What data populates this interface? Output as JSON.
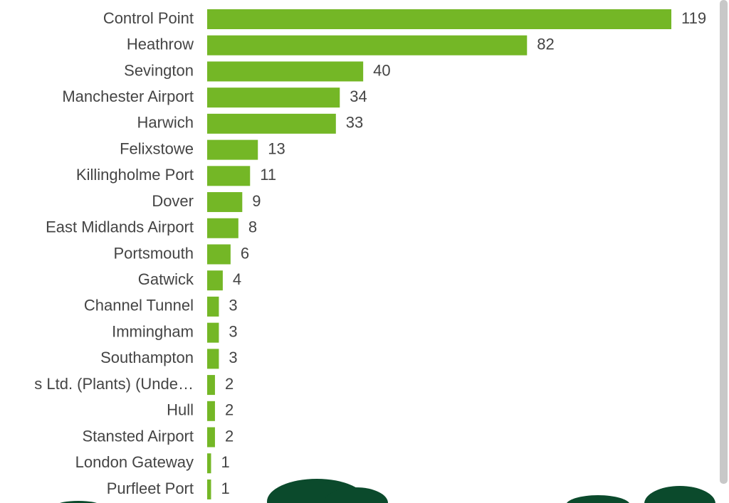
{
  "chart_data": {
    "type": "bar",
    "orientation": "horizontal",
    "color": "#74b726",
    "categories": [
      "Control Point",
      "Heathrow",
      "Sevington",
      "Manchester Airport",
      "Harwich",
      "Felixstowe",
      "Killingholme Port",
      "Dover",
      "East Midlands Airport",
      "Portsmouth",
      "Gatwick",
      "Channel Tunnel",
      "Immingham",
      "Southampton",
      "s Ltd. (Plants) (Unde…",
      "Hull",
      "Stansted Airport",
      "London Gateway",
      "Purfleet Port"
    ],
    "values": [
      119,
      82,
      40,
      34,
      33,
      13,
      11,
      9,
      8,
      6,
      4,
      3,
      3,
      3,
      2,
      2,
      2,
      1,
      1
    ]
  }
}
